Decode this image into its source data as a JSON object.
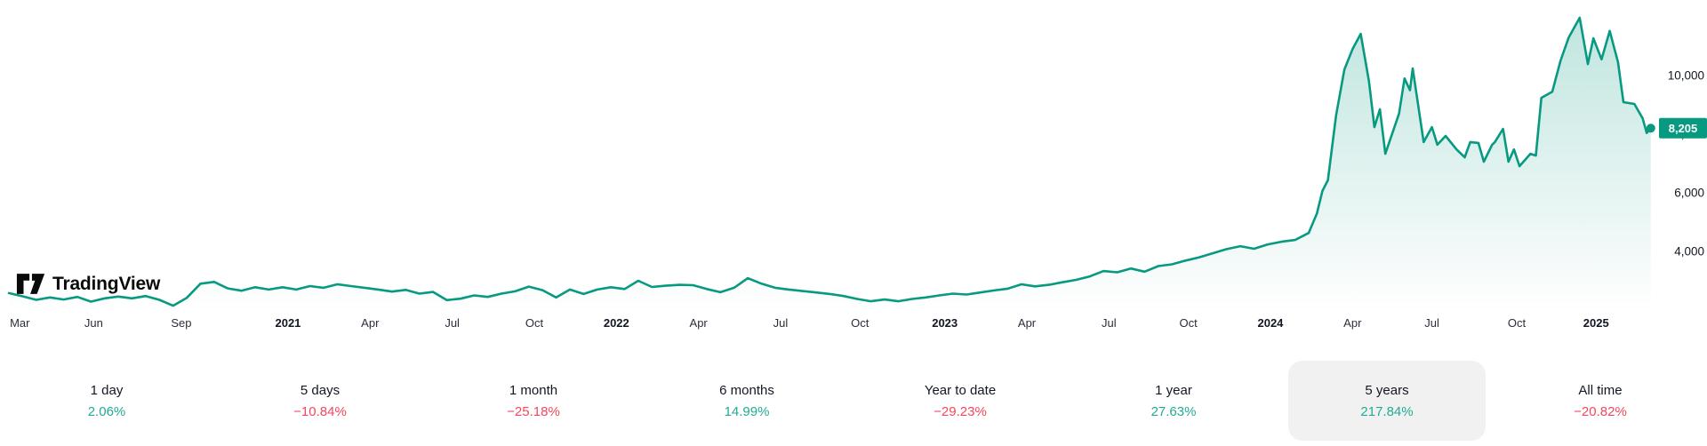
{
  "logo": {
    "text": "TradingView"
  },
  "colors": {
    "line": "#089981",
    "fill_top": "rgba(8,153,129,0.26)",
    "fill_bottom": "rgba(8,153,129,0)",
    "up": "#22ab94",
    "down": "#f5465d",
    "axis_text": "#2a2e39",
    "year_text": "#131722",
    "badge_bg": "#089981",
    "badge_text": "#ffffff",
    "pill_bg": "#f1f1f2"
  },
  "price_badge": {
    "value": "8,205"
  },
  "y_axis": {
    "labels": [
      {
        "text": "10,000",
        "value": 10000
      },
      {
        "text": "8,000",
        "value": 8000
      },
      {
        "text": "6,000",
        "value": 6000
      },
      {
        "text": "4,000",
        "value": 4000
      }
    ]
  },
  "x_axis": {
    "ticks": [
      {
        "label": "Mar",
        "m": 0.4,
        "bold": false
      },
      {
        "label": "Jun",
        "m": 3.1,
        "bold": false
      },
      {
        "label": "Sep",
        "m": 6.3,
        "bold": false
      },
      {
        "label": "2021",
        "m": 10.2,
        "bold": true
      },
      {
        "label": "Apr",
        "m": 13.2,
        "bold": false
      },
      {
        "label": "Jul",
        "m": 16.2,
        "bold": false
      },
      {
        "label": "Oct",
        "m": 19.2,
        "bold": false
      },
      {
        "label": "2022",
        "m": 22.2,
        "bold": true
      },
      {
        "label": "Apr",
        "m": 25.2,
        "bold": false
      },
      {
        "label": "Jul",
        "m": 28.2,
        "bold": false
      },
      {
        "label": "Oct",
        "m": 31.1,
        "bold": false
      },
      {
        "label": "2023",
        "m": 34.2,
        "bold": true
      },
      {
        "label": "Apr",
        "m": 37.2,
        "bold": false
      },
      {
        "label": "Jul",
        "m": 40.2,
        "bold": false
      },
      {
        "label": "Oct",
        "m": 43.1,
        "bold": false
      },
      {
        "label": "2024",
        "m": 46.1,
        "bold": true
      },
      {
        "label": "Apr",
        "m": 49.1,
        "bold": false
      },
      {
        "label": "Jul",
        "m": 52.0,
        "bold": false
      },
      {
        "label": "Oct",
        "m": 55.1,
        "bold": false
      },
      {
        "label": "2025",
        "m": 58.0,
        "bold": true
      }
    ]
  },
  "periods": [
    {
      "label": "1 day",
      "value": "2.06%",
      "direction": "up",
      "selected": false
    },
    {
      "label": "5 days",
      "value": "−10.84%",
      "direction": "down",
      "selected": false
    },
    {
      "label": "1 month",
      "value": "−25.18%",
      "direction": "down",
      "selected": false
    },
    {
      "label": "6 months",
      "value": "14.99%",
      "direction": "up",
      "selected": false
    },
    {
      "label": "Year to date",
      "value": "−29.23%",
      "direction": "down",
      "selected": false
    },
    {
      "label": "1 year",
      "value": "27.63%",
      "direction": "up",
      "selected": false
    },
    {
      "label": "5 years",
      "value": "217.84%",
      "direction": "up",
      "selected": true
    },
    {
      "label": "All time",
      "value": "−20.82%",
      "direction": "down",
      "selected": false
    }
  ],
  "chart_data": {
    "type": "area",
    "title": "5-year price chart, last price 8205",
    "x_unit": "months since 2020-03",
    "x_range": [
      0,
      60
    ],
    "y_range_labeled": [
      4000,
      10000
    ],
    "grid": false,
    "legend": false,
    "last_price": 8205,
    "points": [
      [
        0,
        2580
      ],
      [
        0.5,
        2470
      ],
      [
        1,
        2350
      ],
      [
        1.5,
        2430
      ],
      [
        2,
        2360
      ],
      [
        2.5,
        2450
      ],
      [
        3,
        2290
      ],
      [
        3.5,
        2400
      ],
      [
        4,
        2460
      ],
      [
        4.5,
        2400
      ],
      [
        5,
        2480
      ],
      [
        5.5,
        2350
      ],
      [
        6,
        2150
      ],
      [
        6.5,
        2420
      ],
      [
        7,
        2900
      ],
      [
        7.5,
        2960
      ],
      [
        8,
        2740
      ],
      [
        8.5,
        2660
      ],
      [
        9,
        2780
      ],
      [
        9.5,
        2700
      ],
      [
        10,
        2780
      ],
      [
        10.5,
        2700
      ],
      [
        11,
        2820
      ],
      [
        11.5,
        2760
      ],
      [
        12,
        2880
      ],
      [
        12.5,
        2820
      ],
      [
        13,
        2760
      ],
      [
        13.5,
        2700
      ],
      [
        14,
        2630
      ],
      [
        14.5,
        2690
      ],
      [
        15,
        2560
      ],
      [
        15.5,
        2620
      ],
      [
        16,
        2340
      ],
      [
        16.5,
        2390
      ],
      [
        17,
        2500
      ],
      [
        17.5,
        2450
      ],
      [
        18,
        2560
      ],
      [
        18.5,
        2640
      ],
      [
        19,
        2800
      ],
      [
        19.5,
        2680
      ],
      [
        20,
        2430
      ],
      [
        20.5,
        2700
      ],
      [
        21,
        2550
      ],
      [
        21.5,
        2700
      ],
      [
        22,
        2780
      ],
      [
        22.5,
        2720
      ],
      [
        23,
        3000
      ],
      [
        23.5,
        2790
      ],
      [
        24,
        2830
      ],
      [
        24.5,
        2860
      ],
      [
        25,
        2850
      ],
      [
        25.5,
        2720
      ],
      [
        26,
        2610
      ],
      [
        26.5,
        2760
      ],
      [
        27,
        3090
      ],
      [
        27.5,
        2900
      ],
      [
        28,
        2760
      ],
      [
        28.5,
        2700
      ],
      [
        29,
        2650
      ],
      [
        29.5,
        2600
      ],
      [
        30,
        2550
      ],
      [
        30.5,
        2480
      ],
      [
        31,
        2380
      ],
      [
        31.5,
        2300
      ],
      [
        32,
        2360
      ],
      [
        32.5,
        2300
      ],
      [
        33,
        2380
      ],
      [
        33.5,
        2430
      ],
      [
        34,
        2500
      ],
      [
        34.5,
        2560
      ],
      [
        35,
        2530
      ],
      [
        35.5,
        2600
      ],
      [
        36,
        2670
      ],
      [
        36.5,
        2730
      ],
      [
        37,
        2880
      ],
      [
        37.5,
        2810
      ],
      [
        38,
        2860
      ],
      [
        38.5,
        2950
      ],
      [
        39,
        3030
      ],
      [
        39.5,
        3150
      ],
      [
        40,
        3330
      ],
      [
        40.5,
        3290
      ],
      [
        41,
        3420
      ],
      [
        41.5,
        3310
      ],
      [
        42,
        3500
      ],
      [
        42.5,
        3560
      ],
      [
        43,
        3690
      ],
      [
        43.5,
        3800
      ],
      [
        44,
        3940
      ],
      [
        44.5,
        4080
      ],
      [
        45,
        4180
      ],
      [
        45.5,
        4090
      ],
      [
        46,
        4240
      ],
      [
        46.5,
        4330
      ],
      [
        47,
        4390
      ],
      [
        47.5,
        4630
      ],
      [
        47.8,
        5300
      ],
      [
        48,
        6060
      ],
      [
        48.2,
        6430
      ],
      [
        48.5,
        8640
      ],
      [
        48.8,
        10200
      ],
      [
        49.1,
        10900
      ],
      [
        49.4,
        11420
      ],
      [
        49.7,
        9800
      ],
      [
        49.9,
        8240
      ],
      [
        50.1,
        8850
      ],
      [
        50.3,
        7330
      ],
      [
        50.8,
        8700
      ],
      [
        51,
        9900
      ],
      [
        51.2,
        9500
      ],
      [
        51.3,
        10240
      ],
      [
        51.7,
        7730
      ],
      [
        52,
        8240
      ],
      [
        52.2,
        7640
      ],
      [
        52.5,
        7940
      ],
      [
        52.9,
        7480
      ],
      [
        53.2,
        7210
      ],
      [
        53.4,
        7730
      ],
      [
        53.7,
        7700
      ],
      [
        53.9,
        7060
      ],
      [
        54.2,
        7640
      ],
      [
        54.3,
        7730
      ],
      [
        54.6,
        8180
      ],
      [
        54.8,
        7060
      ],
      [
        55,
        7480
      ],
      [
        55.2,
        6910
      ],
      [
        55.6,
        7330
      ],
      [
        55.8,
        7270
      ],
      [
        56,
        9240
      ],
      [
        56.4,
        9450
      ],
      [
        56.7,
        10500
      ],
      [
        57,
        11300
      ],
      [
        57.4,
        11970
      ],
      [
        57.7,
        10390
      ],
      [
        57.9,
        11270
      ],
      [
        58.2,
        10550
      ],
      [
        58.5,
        11520
      ],
      [
        58.8,
        10450
      ],
      [
        59,
        9090
      ],
      [
        59.4,
        9030
      ],
      [
        59.7,
        8540
      ],
      [
        59.85,
        8040
      ],
      [
        60,
        8205
      ]
    ]
  }
}
